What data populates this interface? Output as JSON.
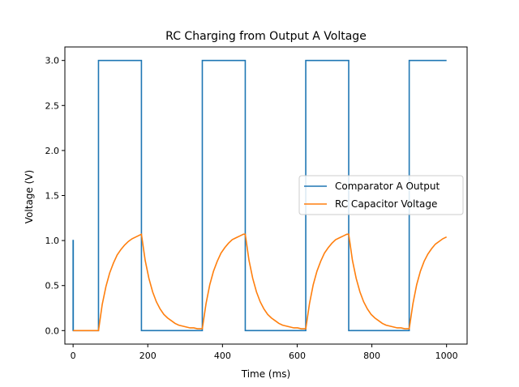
{
  "chart_data": {
    "type": "line",
    "title": "RC Charging from Output A Voltage",
    "xlabel": "Time (ms)",
    "ylabel": "Voltage (V)",
    "xlim": [
      -22,
      1055
    ],
    "ylim": [
      -0.15,
      3.15
    ],
    "xticks": [
      0,
      200,
      400,
      600,
      800,
      1000
    ],
    "yticks": [
      0.0,
      0.5,
      1.0,
      1.5,
      2.0,
      2.5,
      3.0
    ],
    "xtick_labels": [
      "0",
      "200",
      "400",
      "600",
      "800",
      "1000"
    ],
    "ytick_labels": [
      "0.0",
      "0.5",
      "1.0",
      "1.5",
      "2.0",
      "2.5",
      "3.0"
    ],
    "grid": false,
    "legend_position": "center-right",
    "series": [
      {
        "name": "Comparator A Output",
        "color": "#1f77b4",
        "x": [
          0,
          0,
          0.5,
          0.5,
          68,
          68,
          183,
          183,
          346,
          346,
          461,
          461,
          623,
          623,
          738,
          738,
          900,
          900,
          1000
        ],
        "y": [
          0,
          1.0,
          1.0,
          0,
          0,
          3.0,
          3.0,
          0,
          0,
          3.0,
          3.0,
          0,
          0,
          3.0,
          3.0,
          0,
          0,
          3.0,
          3.0
        ]
      },
      {
        "name": "RC Capacitor Voltage",
        "color": "#ff7f0e",
        "x": [
          0,
          68,
          78,
          88,
          98,
          108,
          118,
          128,
          138,
          148,
          158,
          168,
          178,
          183,
          193,
          203,
          213,
          223,
          233,
          243,
          253,
          263,
          273,
          283,
          293,
          303,
          313,
          323,
          333,
          346,
          356,
          366,
          376,
          386,
          396,
          406,
          416,
          426,
          436,
          446,
          456,
          461,
          471,
          481,
          491,
          501,
          511,
          521,
          531,
          541,
          551,
          561,
          571,
          581,
          591,
          601,
          611,
          623,
          633,
          643,
          653,
          663,
          673,
          683,
          693,
          703,
          713,
          723,
          733,
          738,
          748,
          758,
          768,
          778,
          788,
          798,
          808,
          818,
          828,
          838,
          848,
          858,
          868,
          878,
          888,
          900,
          910,
          920,
          930,
          940,
          950,
          960,
          970,
          980,
          990,
          1000
        ],
        "y": [
          0,
          0,
          0.29,
          0.49,
          0.64,
          0.75,
          0.84,
          0.9,
          0.95,
          0.99,
          1.02,
          1.04,
          1.06,
          1.07,
          0.78,
          0.58,
          0.43,
          0.32,
          0.24,
          0.18,
          0.14,
          0.11,
          0.08,
          0.06,
          0.05,
          0.04,
          0.03,
          0.03,
          0.02,
          0.02,
          0.3,
          0.51,
          0.66,
          0.77,
          0.86,
          0.92,
          0.97,
          1.01,
          1.03,
          1.05,
          1.07,
          1.07,
          0.78,
          0.58,
          0.43,
          0.32,
          0.24,
          0.18,
          0.14,
          0.11,
          0.08,
          0.06,
          0.05,
          0.04,
          0.03,
          0.03,
          0.02,
          0.02,
          0.3,
          0.51,
          0.66,
          0.77,
          0.86,
          0.92,
          0.97,
          1.01,
          1.03,
          1.05,
          1.07,
          1.07,
          0.78,
          0.58,
          0.43,
          0.32,
          0.24,
          0.18,
          0.14,
          0.11,
          0.08,
          0.06,
          0.05,
          0.04,
          0.03,
          0.03,
          0.02,
          0.02,
          0.3,
          0.51,
          0.66,
          0.77,
          0.85,
          0.91,
          0.96,
          0.99,
          1.02,
          1.04
        ]
      }
    ]
  }
}
